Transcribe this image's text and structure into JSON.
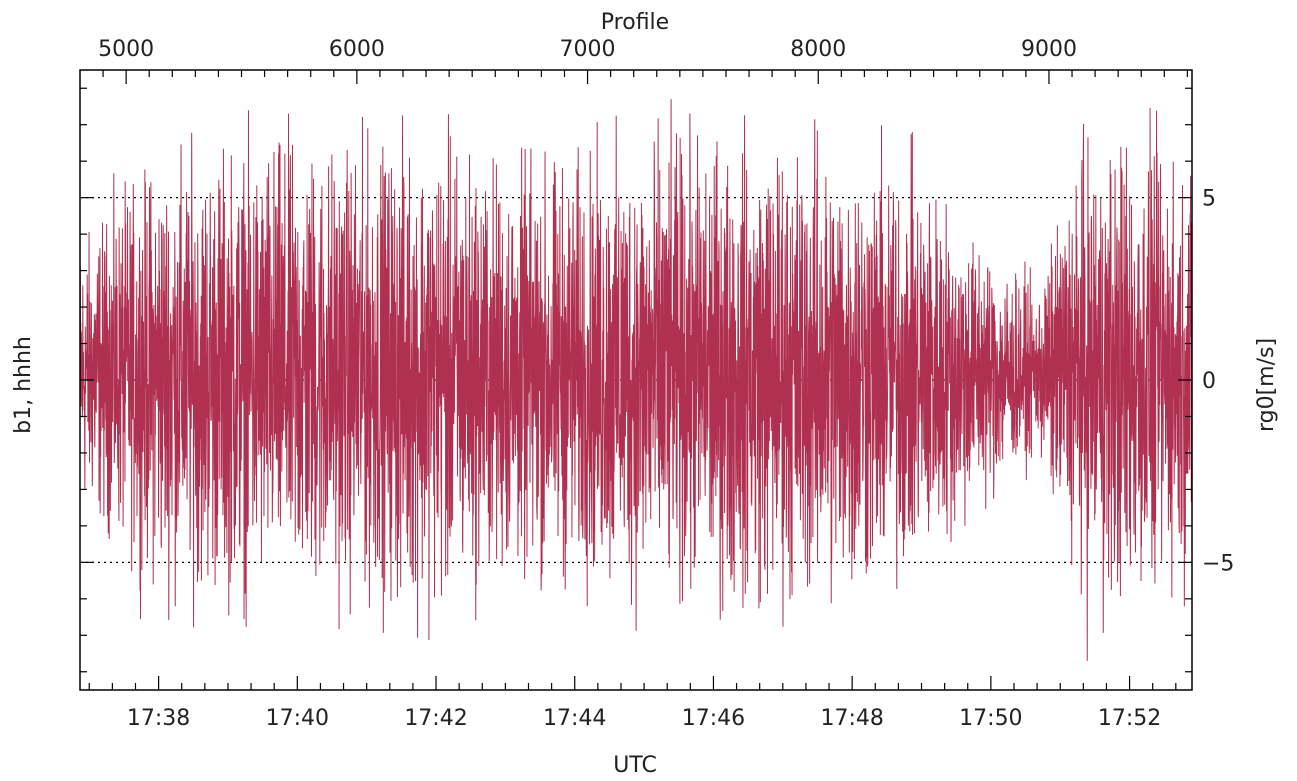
{
  "chart_data": {
    "type": "line",
    "title": "",
    "xlabel": "UTC",
    "ylabel_left": "b1, hhhh",
    "ylabel_right": "rg0[m/s]",
    "top_axis_label": "Profile",
    "series_color": "#b03050",
    "x_time_ticks": [
      "17:38",
      "17:40",
      "17:42",
      "17:44",
      "17:46",
      "17:48",
      "17:50",
      "17:52"
    ],
    "x_time_range": [
      "17:36:52",
      "17:52:54"
    ],
    "profile_ticks": [
      5000,
      6000,
      7000,
      8000,
      9000
    ],
    "profile_range": [
      4800,
      9620
    ],
    "y_ticks": [
      -5,
      0,
      5
    ],
    "ylim": [
      -8.5,
      8.5
    ],
    "grid": "dotted horizontal lines at -5, 0, 5",
    "envelope": [
      {
        "t": "17:37:00",
        "amp": 4.5
      },
      {
        "t": "17:38:00",
        "amp": 6.8
      },
      {
        "t": "17:39:00",
        "amp": 7.2
      },
      {
        "t": "17:40:00",
        "amp": 7.4
      },
      {
        "t": "17:41:00",
        "amp": 7.2
      },
      {
        "t": "17:42:00",
        "amp": 7.6
      },
      {
        "t": "17:43:00",
        "amp": 6.6
      },
      {
        "t": "17:44:00",
        "amp": 6.8
      },
      {
        "t": "17:45:00",
        "amp": 7.6
      },
      {
        "t": "17:46:00",
        "amp": 7.4
      },
      {
        "t": "17:47:00",
        "amp": 7.5
      },
      {
        "t": "17:48:00",
        "amp": 7.4
      },
      {
        "t": "17:49:00",
        "amp": 6.4
      },
      {
        "t": "17:50:00",
        "amp": 4.0
      },
      {
        "t": "17:50:40",
        "amp": 2.6
      },
      {
        "t": "17:51:20",
        "amp": 7.4
      },
      {
        "t": "17:52:00",
        "amp": 7.8
      },
      {
        "t": "17:52:50",
        "amp": 6.5
      }
    ]
  }
}
